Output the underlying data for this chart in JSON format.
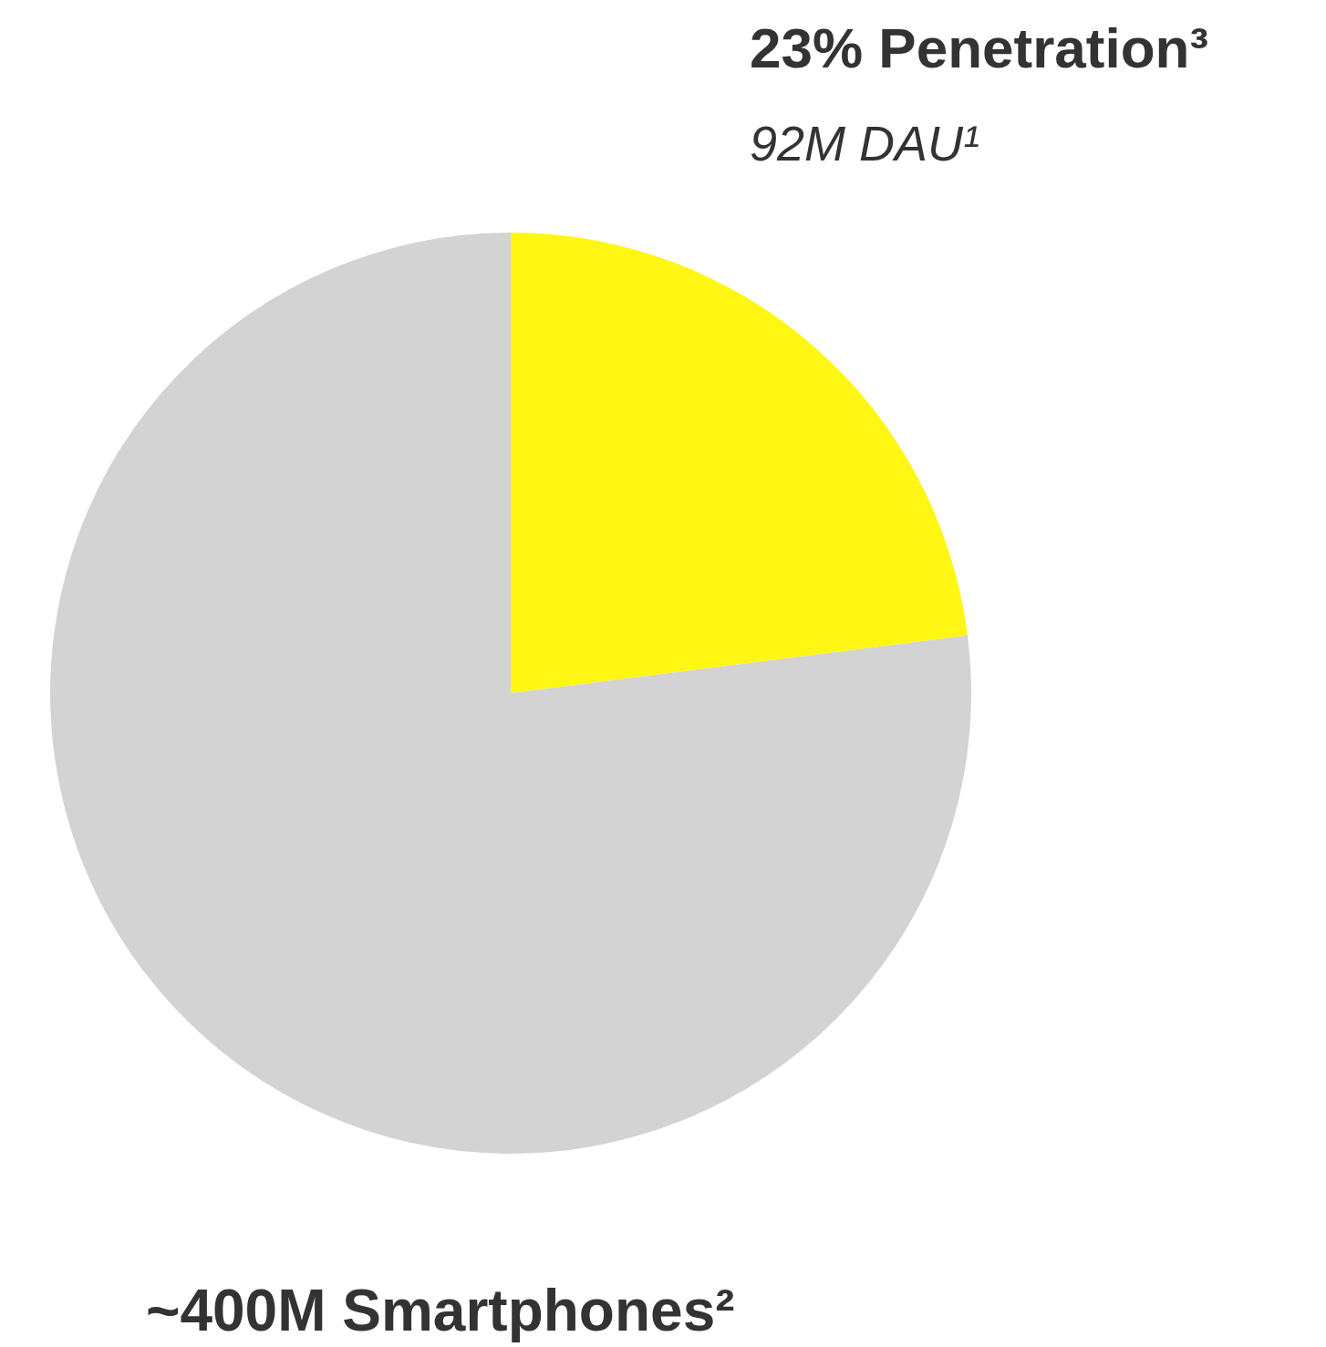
{
  "chart_data": {
    "type": "pie",
    "categories": [
      null,
      null
    ],
    "values": [
      23,
      77
    ],
    "colors": [
      "#fff614",
      "#d3d3d3"
    ],
    "annotations": [
      "23% Penetration³",
      "92M DAU¹",
      "~400M Smartphones²"
    ]
  }
}
